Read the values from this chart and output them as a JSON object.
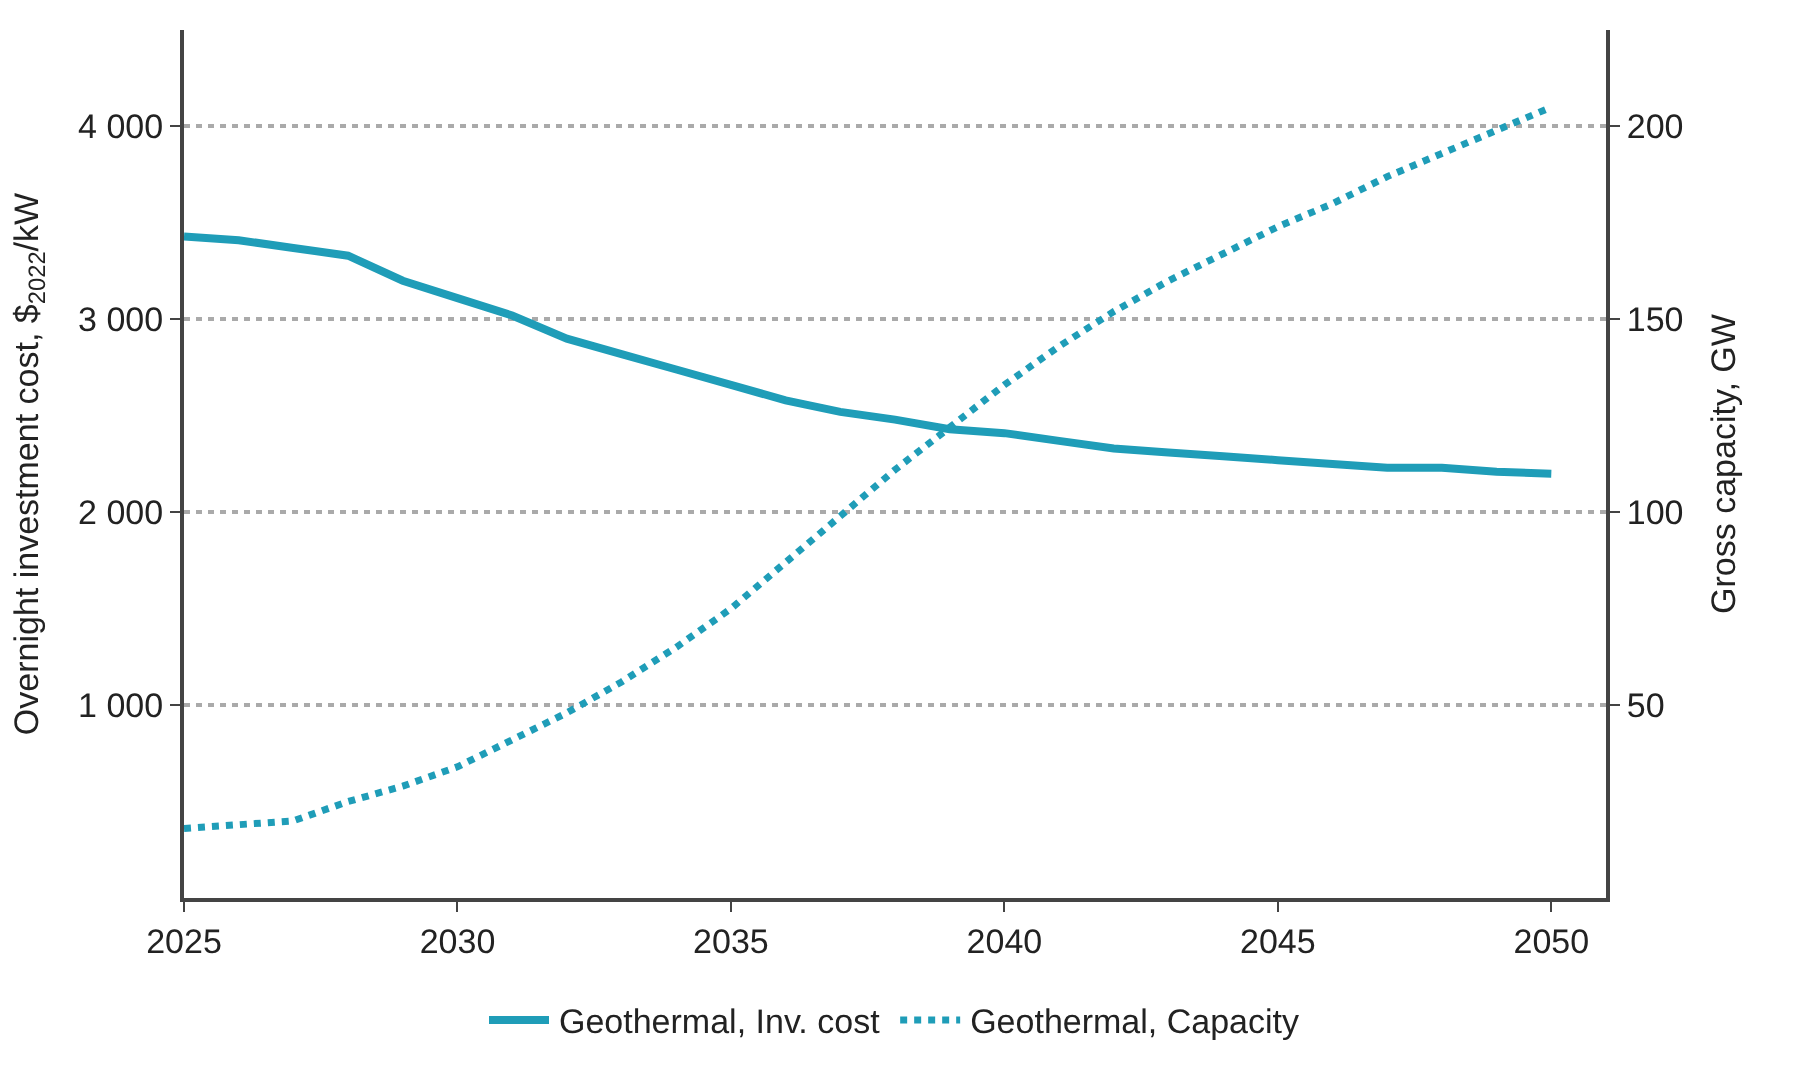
{
  "chart_data": {
    "type": "line",
    "ylabel": "Overnight investment cost, $$_{2022}$/kW",
    "y2label": "Gross capacity, GW",
    "x": [
      2025,
      2026,
      2027,
      2028,
      2029,
      2030,
      2031,
      2032,
      2033,
      2034,
      2035,
      2036,
      2037,
      2038,
      2039,
      2040,
      2041,
      2042,
      2043,
      2044,
      2045,
      2046,
      2047,
      2048,
      2049,
      2050
    ],
    "series": [
      {
        "name": "Geothermal, Inv. cost",
        "color": "#1f9db8",
        "line_style": "solid",
        "values": [
          3430,
          3410,
          3370,
          3330,
          3200,
          3110,
          3020,
          2900,
          2820,
          2740,
          2660,
          2580,
          2520,
          2480,
          2430,
          2410,
          2370,
          2330,
          2310,
          2290,
          2270,
          2250,
          2230,
          2230,
          2210,
          2200
        ]
      },
      {
        "name": "Geothermal, Capacity",
        "color": "#1f9db8",
        "line_style": "dotted",
        "axis": "y2",
        "values": [
          18,
          19,
          20,
          25,
          29,
          34,
          41,
          48,
          56,
          65,
          75,
          87,
          99,
          111,
          122,
          133,
          143,
          152,
          160,
          167,
          174,
          180,
          187,
          193,
          199,
          205
        ]
      }
    ],
    "xlim": [
      2025,
      2051
    ],
    "xticks": [
      2025,
      2030,
      2035,
      2040,
      2045,
      2050
    ],
    "ylim": [
      0,
      4500
    ],
    "yticks": [
      {
        "value": 1000,
        "label": "1 000"
      },
      {
        "value": 2000,
        "label": "2 000"
      },
      {
        "value": 3000,
        "label": "3 000"
      },
      {
        "value": 4000,
        "label": "4 000"
      }
    ],
    "y2lim": [
      0,
      225
    ],
    "y2ticks": [
      50,
      100,
      150,
      200
    ],
    "grid": "y",
    "legend": "bottom",
    "marker": "none"
  }
}
